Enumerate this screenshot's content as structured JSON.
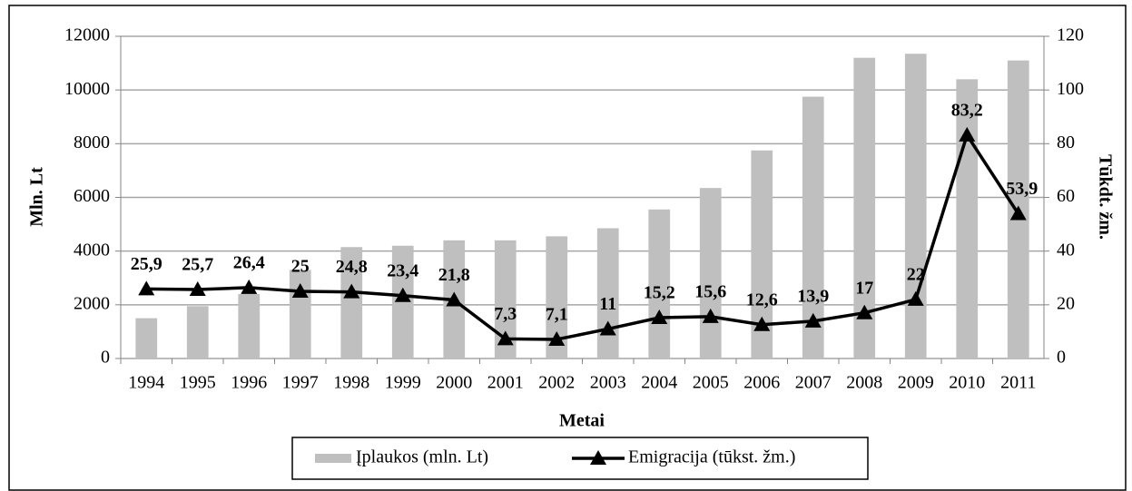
{
  "chart_data": {
    "type": "bar_line",
    "y_label": "Mln. Lt",
    "y2_label": "Tūkdt. žm.",
    "x_label": "Metai",
    "categories": [
      "1994",
      "1995",
      "1996",
      "1997",
      "1998",
      "1999",
      "2000",
      "2001",
      "2002",
      "2003",
      "2004",
      "2005",
      "2006",
      "2007",
      "2008",
      "2009",
      "2010",
      "2011"
    ],
    "series": [
      {
        "name": "Įplaukos (mln. Lt)",
        "type": "bar",
        "color": "#bfbfbf",
        "values": [
          1500,
          1950,
          2400,
          3300,
          4150,
          4200,
          4400,
          4400,
          4550,
          4850,
          5550,
          6350,
          7750,
          9750,
          11200,
          11350,
          10400,
          11100
        ]
      },
      {
        "name": "Emigracija (tūkst. žm.)",
        "type": "line",
        "axis": "y2",
        "color": "#000000",
        "values": [
          25.9,
          25.7,
          26.4,
          25,
          24.8,
          23.4,
          21.8,
          7.3,
          7.1,
          11,
          15.2,
          15.6,
          12.6,
          13.9,
          17,
          22,
          83.2,
          53.9
        ],
        "value_labels": [
          "25,9",
          "25,7",
          "26,4",
          "25",
          "24,8",
          "23,4",
          "21,8",
          "7,3",
          "7,1",
          "11",
          "15,2",
          "15,6",
          "12,6",
          "13,9",
          "17",
          "22",
          "83,2",
          "53,9"
        ]
      }
    ],
    "ylim": [
      0,
      12000
    ],
    "yticks": [
      0,
      2000,
      4000,
      6000,
      8000,
      10000,
      12000
    ],
    "y2lim": [
      0,
      120
    ],
    "y2ticks": [
      0,
      20,
      40,
      60,
      80,
      100,
      120
    ],
    "grid": true,
    "legend": "bottom"
  }
}
